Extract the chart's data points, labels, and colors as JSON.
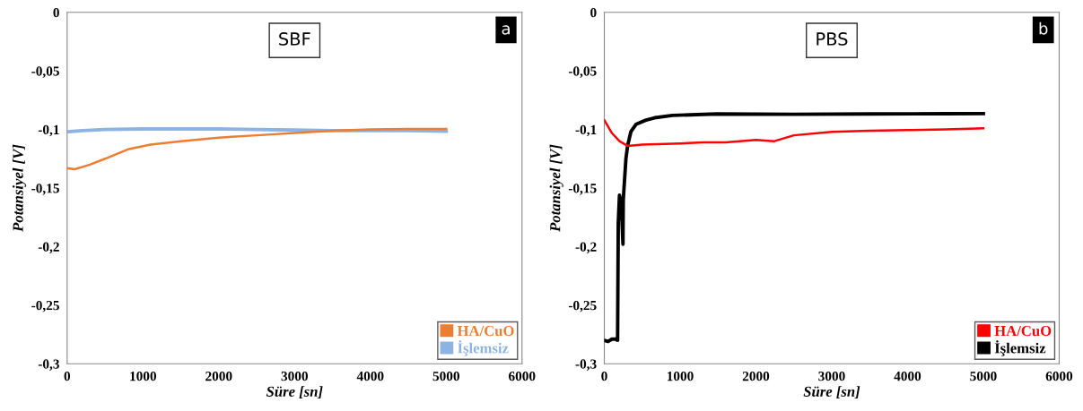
{
  "chart_data": [
    {
      "type": "line",
      "title": "SBF",
      "xlabel": "Süre [sn]",
      "ylabel": "Potansiyel [V]",
      "annotations": [
        "a"
      ],
      "xlim": [
        0,
        6000
      ],
      "ylim": [
        -0.3,
        0
      ],
      "xticks": [
        0,
        1000,
        2000,
        3000,
        4000,
        5000,
        6000
      ],
      "yticks": [
        {
          "value": -0.3,
          "label": "-0,3"
        },
        {
          "value": -0.25,
          "label": "-0,25"
        },
        {
          "value": -0.2,
          "label": "-0,2"
        },
        {
          "value": -0.15,
          "label": "-0,15"
        },
        {
          "value": -0.1,
          "label": "-0,1"
        },
        {
          "value": -0.05,
          "label": "-0,05"
        },
        {
          "value": 0,
          "label": "0"
        }
      ],
      "grid": false,
      "legend": "bottom right",
      "marker": "none",
      "line_style": "solid",
      "series": [
        {
          "name": "HA/CuO",
          "color": "#ed7d31",
          "x": [
            0,
            100,
            300,
            500,
            800,
            1100,
            1500,
            2000,
            2500,
            3000,
            3500,
            4000,
            4500,
            5000
          ],
          "values": [
            -0.133,
            -0.134,
            -0.13,
            -0.125,
            -0.117,
            -0.113,
            -0.11,
            -0.107,
            -0.105,
            -0.103,
            -0.101,
            -0.1,
            -0.0995,
            -0.0995
          ]
        },
        {
          "name": "İşlemsiz",
          "color": "#8db3e2",
          "x": [
            0,
            200,
            500,
            1000,
            2000,
            2500,
            3000,
            3500,
            4000,
            4500,
            5000
          ],
          "values": [
            -0.102,
            -0.101,
            -0.1,
            -0.0995,
            -0.0995,
            -0.1,
            -0.1005,
            -0.101,
            -0.101,
            -0.101,
            -0.1015
          ]
        }
      ]
    },
    {
      "type": "line",
      "title": "PBS",
      "xlabel": "Süre [sn]",
      "ylabel": "Potansiyel [V]",
      "annotations": [
        "b"
      ],
      "xlim": [
        0,
        6000
      ],
      "ylim": [
        -0.3,
        0
      ],
      "xticks": [
        0,
        1000,
        2000,
        3000,
        4000,
        5000,
        6000
      ],
      "yticks": [
        {
          "value": -0.3,
          "label": "-0,3"
        },
        {
          "value": -0.25,
          "label": "-0,25"
        },
        {
          "value": -0.2,
          "label": "-0,2"
        },
        {
          "value": -0.15,
          "label": "-0,15"
        },
        {
          "value": -0.1,
          "label": "-0,1"
        },
        {
          "value": -0.05,
          "label": "-0,05"
        },
        {
          "value": 0,
          "label": "0"
        }
      ],
      "grid": false,
      "legend": "bottom right",
      "marker": "none",
      "line_style": "solid",
      "series": [
        {
          "name": "HA/CuO",
          "color": "#ff0000",
          "x": [
            0,
            100,
            200,
            307,
            500,
            1000,
            1300,
            1600,
            2000,
            2243,
            2500,
            3000,
            3500,
            4000,
            4500,
            5000
          ],
          "values": [
            -0.092,
            -0.103,
            -0.11,
            -0.114,
            -0.113,
            -0.112,
            -0.111,
            -0.111,
            -0.109,
            -0.11,
            -0.105,
            -0.102,
            -0.101,
            -0.1005,
            -0.1,
            -0.099
          ]
        },
        {
          "name": "İşlemsiz",
          "color": "#000000",
          "x": [
            0,
            50,
            100,
            150,
            175,
            184,
            200,
            225,
            246,
            250,
            265,
            285,
            307,
            350,
            420,
            550,
            664,
            900,
            1480,
            2500,
            3500,
            4500,
            5000
          ],
          "values": [
            -0.28,
            -0.281,
            -0.279,
            -0.279,
            -0.28,
            -0.18,
            -0.156,
            -0.165,
            -0.198,
            -0.16,
            -0.145,
            -0.125,
            -0.114,
            -0.102,
            -0.0955,
            -0.092,
            -0.09,
            -0.088,
            -0.0868,
            -0.087,
            -0.0868,
            -0.0866,
            -0.0865
          ]
        }
      ]
    }
  ]
}
